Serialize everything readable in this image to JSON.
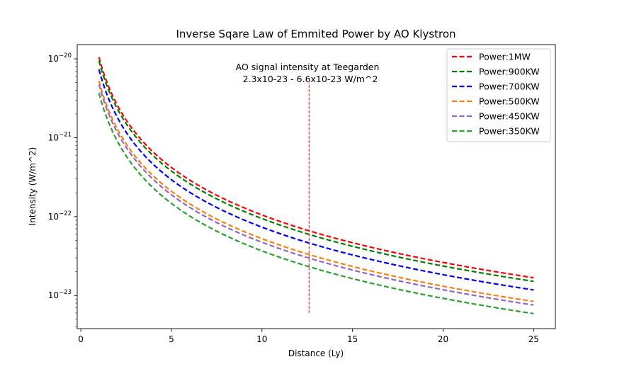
{
  "chart_data": {
    "type": "line",
    "title": "Inverse Sqare Law of Emmited Power by AO Klystron",
    "xlabel": "Distance (Ly)",
    "ylabel": "Intensity (W/m^2)",
    "xlim": [
      -0.2,
      26.2
    ],
    "ylim_exp": [
      -23.42,
      -19.82
    ],
    "yscale": "log",
    "x_ticks": [
      0,
      5,
      10,
      15,
      20,
      25
    ],
    "x_tick_labels": [
      "0",
      "5",
      "10",
      "15",
      "20",
      "25"
    ],
    "y_ticks_exp": [
      -20,
      -21,
      -22,
      -23
    ],
    "y_tick_base": "10",
    "y_tick_exponents": [
      "−20",
      "−21",
      "−22",
      "−23"
    ],
    "x_range": [
      1,
      25
    ],
    "series": [
      {
        "name": "Power:1MW",
        "label": "Power:1MW",
        "color": "#ff0000",
        "value_at_1ly": 1.05e-20
      },
      {
        "name": "Power:900KW",
        "label": "Power:900KW",
        "color": "#008000",
        "value_at_1ly": 9.45e-21
      },
      {
        "name": "Power:700KW",
        "label": "Power:700KW",
        "color": "#0000ff",
        "value_at_1ly": 7.35e-21
      },
      {
        "name": "Power:500KW",
        "label": "Power:500KW",
        "color": "#ff7f0e",
        "value_at_1ly": 5.25e-21
      },
      {
        "name": "Power:450KW",
        "label": "Power:450KW",
        "color": "#9467bd",
        "value_at_1ly": 4.73e-21
      },
      {
        "name": "Power:350KW",
        "label": "Power:350KW",
        "color": "#2ca02c",
        "value_at_1ly": 3.68e-21
      }
    ],
    "vline": {
      "x": 12.6,
      "y_from": 6e-24,
      "y_to": 5e-21,
      "color": "#ff0000"
    },
    "annotation": {
      "line1": "AO signal intensity at Teegarden",
      "line2": "2.3x10-23 - 6.6x10-23 W/m^2"
    },
    "legend_position": "top-right"
  }
}
